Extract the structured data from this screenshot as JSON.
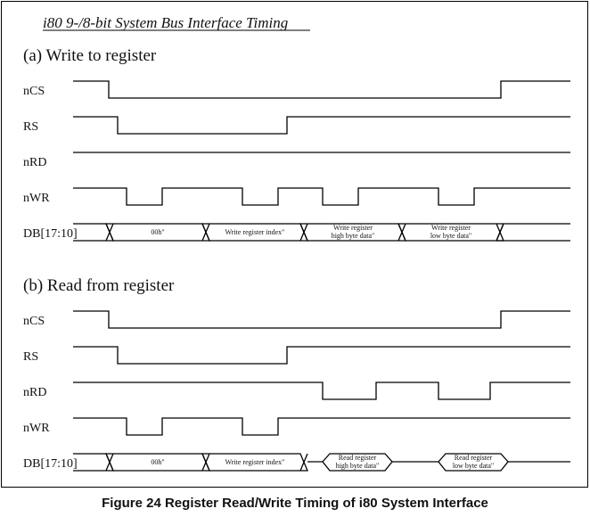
{
  "title": "i80 9-/8-bit System Bus Interface Timing",
  "caption": "Figure 24 Register Read/Write Timing of i80 System Interface",
  "write_section": {
    "heading": "(a) Write to register",
    "signals": {
      "ncs": {
        "label": "nCS"
      },
      "rs": {
        "label": "RS"
      },
      "nrd": {
        "label": "nRD"
      },
      "nwr": {
        "label": "nWR"
      }
    },
    "bus": {
      "label": "DB[17:10]",
      "cells": [
        {
          "line1": "00h\"",
          "line2": ""
        },
        {
          "line1": "Write register  index\"",
          "line2": ""
        },
        {
          "line1": "Write register",
          "line2": "high byte data\""
        },
        {
          "line1": "Write register",
          "line2": "low byte data\""
        }
      ]
    }
  },
  "read_section": {
    "heading": "(b) Read from register",
    "signals": {
      "ncs": {
        "label": "nCS"
      },
      "rs": {
        "label": "RS"
      },
      "nrd": {
        "label": "nRD"
      },
      "nwr": {
        "label": "nWR"
      }
    },
    "bus": {
      "label": "DB[17:10]",
      "cells": [
        {
          "line1": "00h\"",
          "line2": ""
        },
        {
          "line1": "Write register  index\"",
          "line2": ""
        },
        {
          "line1": "Read register",
          "line2": "high byte data\""
        },
        {
          "line1": "Read register",
          "line2": "low byte data\""
        }
      ]
    }
  }
}
